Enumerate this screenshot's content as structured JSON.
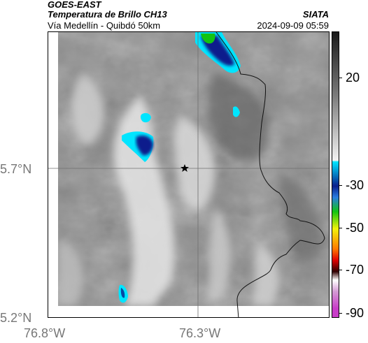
{
  "header": {
    "title_line1": "GOES-EAST",
    "title_line2": "Temperatura de Brillo CH13",
    "subtitle": "Vía Medellín - Quibdó 50km",
    "brand": "SIATA",
    "timestamp": "2024-09-09 05:59"
  },
  "map": {
    "lat_labels": [
      "5.7°N",
      "5.2°N"
    ],
    "lon_labels": [
      "76.8°W",
      "76.3°W"
    ],
    "marker": "star"
  },
  "colorbar": {
    "tick_labels": [
      "20",
      "-30",
      "-50",
      "-70",
      "-90"
    ],
    "colors": {
      "gray_top": "#1a1a1a",
      "gray_bottom": "#f2f2f2",
      "cyan": "#00e5ff",
      "blue": "#0a1f8c",
      "green": "#12c412",
      "yellow": "#f2f20a",
      "orange": "#ff7a00",
      "red": "#e00000",
      "dark_red": "#300000",
      "magenta": "#c83cc8"
    }
  }
}
